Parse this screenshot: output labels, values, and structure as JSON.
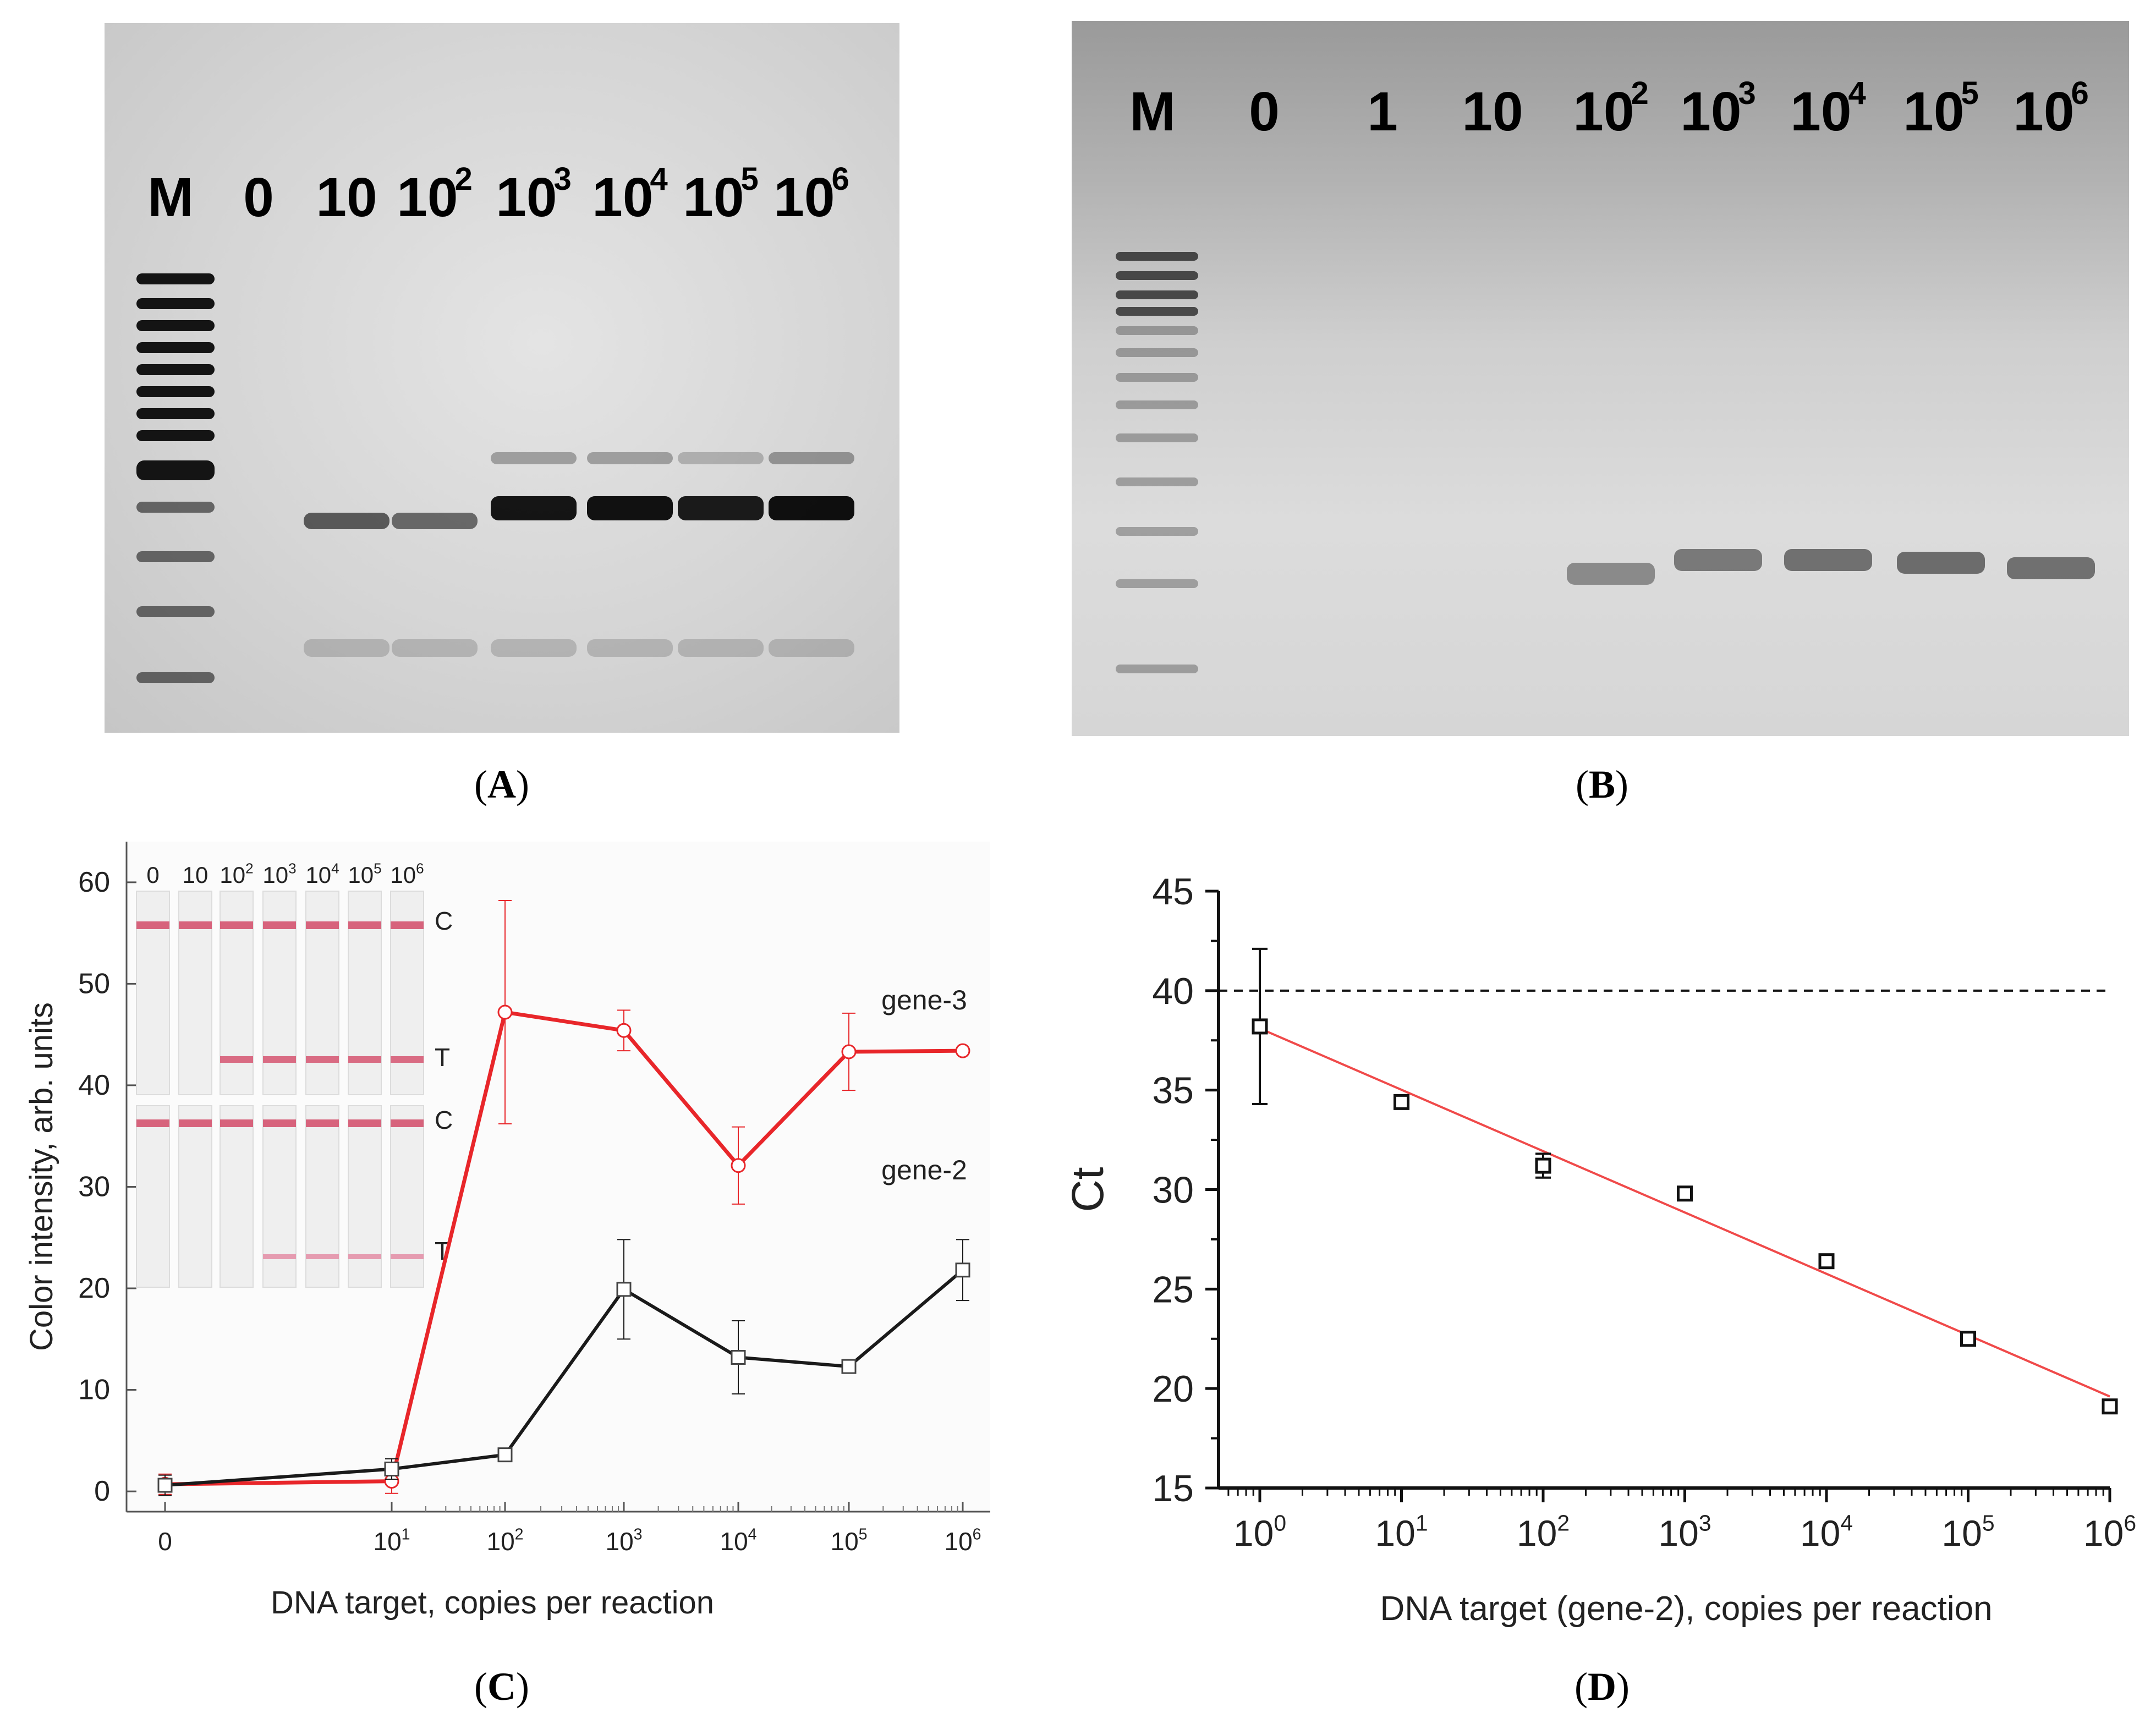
{
  "panel_a": {
    "lane_labels": [
      {
        "base": "M",
        "exp": ""
      },
      {
        "base": "0",
        "exp": ""
      },
      {
        "base": "10",
        "exp": ""
      },
      {
        "base": "10",
        "exp": "2"
      },
      {
        "base": "10",
        "exp": "3"
      },
      {
        "base": "10",
        "exp": "4"
      },
      {
        "base": "10",
        "exp": "5"
      },
      {
        "base": "10",
        "exp": "6"
      }
    ],
    "caption": "A"
  },
  "panel_b": {
    "lane_labels": [
      {
        "base": "M",
        "exp": ""
      },
      {
        "base": "0",
        "exp": ""
      },
      {
        "base": "1",
        "exp": ""
      },
      {
        "base": "10",
        "exp": ""
      },
      {
        "base": "10",
        "exp": "2"
      },
      {
        "base": "10",
        "exp": "3"
      },
      {
        "base": "10",
        "exp": "4"
      },
      {
        "base": "10",
        "exp": "5"
      },
      {
        "base": "10",
        "exp": "6"
      }
    ],
    "caption": "B"
  },
  "panel_c": {
    "caption": "C",
    "strip_labels": [
      "0",
      "10",
      "10",
      "10",
      "10",
      "10",
      "10"
    ],
    "strip_exps": [
      "",
      "",
      "2",
      "3",
      "4",
      "5",
      "6"
    ],
    "line_labels": {
      "control": "C",
      "test": "T"
    }
  },
  "panel_d": {
    "caption": "D"
  },
  "chart_data": [
    {
      "id": "C",
      "type": "line",
      "xscale": "log (0 placed one decade below 10^1)",
      "x_tick_labels": [
        "0",
        "10^1",
        "10^2",
        "10^3",
        "10^4",
        "10^5",
        "10^6"
      ],
      "ylabel": "Color intensity, arb. units",
      "xlabel": "DNA target, copies per reaction",
      "ylim": [
        -2,
        64
      ],
      "yticks": [
        0,
        10,
        20,
        30,
        40,
        50,
        60
      ],
      "colors": {
        "gene-3": "#e8262a",
        "gene-2": "#1a1a1a"
      },
      "series": [
        {
          "name": "gene-3",
          "marker": "circle",
          "x": [
            0,
            10,
            100,
            1000,
            10000,
            100000,
            1000000
          ],
          "values": [
            0.7,
            1.0,
            47.2,
            45.4,
            32.1,
            43.3,
            43.4
          ],
          "errors": [
            1.0,
            1.2,
            11.0,
            2.0,
            3.8,
            3.8,
            0.0
          ]
        },
        {
          "name": "gene-2",
          "marker": "square",
          "x": [
            0,
            10,
            100,
            1000,
            10000,
            100000,
            1000000
          ],
          "values": [
            0.6,
            2.2,
            3.6,
            19.9,
            13.2,
            12.3,
            21.8
          ],
          "errors": [
            1.0,
            1.0,
            0.0,
            4.9,
            3.6,
            0.6,
            3.0
          ]
        }
      ]
    },
    {
      "id": "D",
      "type": "scatter",
      "xscale": "log",
      "x_tick_labels": [
        "10^0",
        "10^1",
        "10^2",
        "10^3",
        "10^4",
        "10^5",
        "10^6"
      ],
      "ylabel": "Ct",
      "xlabel": "DNA target (gene-2), copies per reaction",
      "ylim": [
        15,
        45
      ],
      "yticks": [
        15,
        20,
        25,
        30,
        35,
        40,
        45
      ],
      "threshold": 40,
      "x": [
        1,
        10,
        100,
        1000,
        10000,
        100000,
        1000000
      ],
      "values": [
        38.2,
        34.4,
        31.2,
        29.8,
        26.4,
        22.5,
        19.1
      ],
      "errors": [
        3.9,
        0,
        0.6,
        0,
        0,
        0,
        0
      ],
      "fit": {
        "x": [
          1,
          1000000
        ],
        "y": [
          38.1,
          19.6
        ],
        "color": "#f04a4a"
      }
    }
  ]
}
